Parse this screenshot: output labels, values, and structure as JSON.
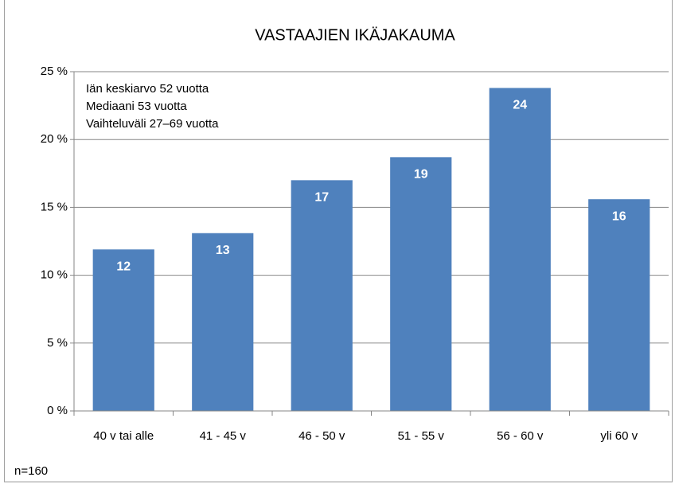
{
  "chart_data": {
    "type": "bar",
    "title": "VASTAAJIEN IKÄJAKAUMA",
    "categories": [
      "40 v tai alle",
      "41 - 45 v",
      "46 - 50 v",
      "51 - 55 v",
      "56 - 60 v",
      "yli 60 v"
    ],
    "values": [
      11.9,
      13.1,
      17.0,
      18.7,
      23.8,
      15.6
    ],
    "value_labels": [
      "12",
      "13",
      "17",
      "19",
      "24",
      "16"
    ],
    "color": "#4f81bd",
    "ylim": [
      0,
      25
    ],
    "yticks": [
      {
        "value": 0,
        "label": "0 %"
      },
      {
        "value": 5,
        "label": "5 %"
      },
      {
        "value": 10,
        "label": "10 %"
      },
      {
        "value": 15,
        "label": "15 %"
      },
      {
        "value": 20,
        "label": "20 %"
      },
      {
        "value": 25,
        "label": "25 %"
      }
    ],
    "grid": true,
    "annotations": [
      "Iän keskiarvo 52 vuotta",
      "Mediaani 53 vuotta",
      "Vaihteluväli  27–69 vuotta"
    ],
    "note": "n=160"
  }
}
